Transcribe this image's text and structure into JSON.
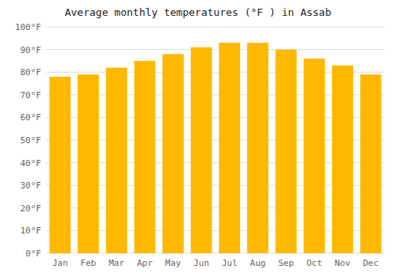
{
  "chart_data": {
    "type": "bar",
    "title": "Average monthly temperatures (°F ) in Assab",
    "categories": [
      "Jan",
      "Feb",
      "Mar",
      "Apr",
      "May",
      "Jun",
      "Jul",
      "Aug",
      "Sep",
      "Oct",
      "Nov",
      "Dec"
    ],
    "values": [
      78,
      79,
      82,
      85,
      88,
      91,
      93,
      93,
      90,
      86,
      83,
      79
    ],
    "color": "#FFB800",
    "ylim": [
      0,
      100
    ],
    "yticks": [
      {
        "value": 0,
        "label": "0°F"
      },
      {
        "value": 10,
        "label": "10°F"
      },
      {
        "value": 20,
        "label": "20°F"
      },
      {
        "value": 30,
        "label": "30°F"
      },
      {
        "value": 40,
        "label": "40°F"
      },
      {
        "value": 50,
        "label": "50°F"
      },
      {
        "value": 60,
        "label": "60°F"
      },
      {
        "value": 70,
        "label": "70°F"
      },
      {
        "value": 80,
        "label": "80°F"
      },
      {
        "value": 90,
        "label": "90°F"
      },
      {
        "value": 100,
        "label": "100°F"
      }
    ],
    "grid": true
  }
}
